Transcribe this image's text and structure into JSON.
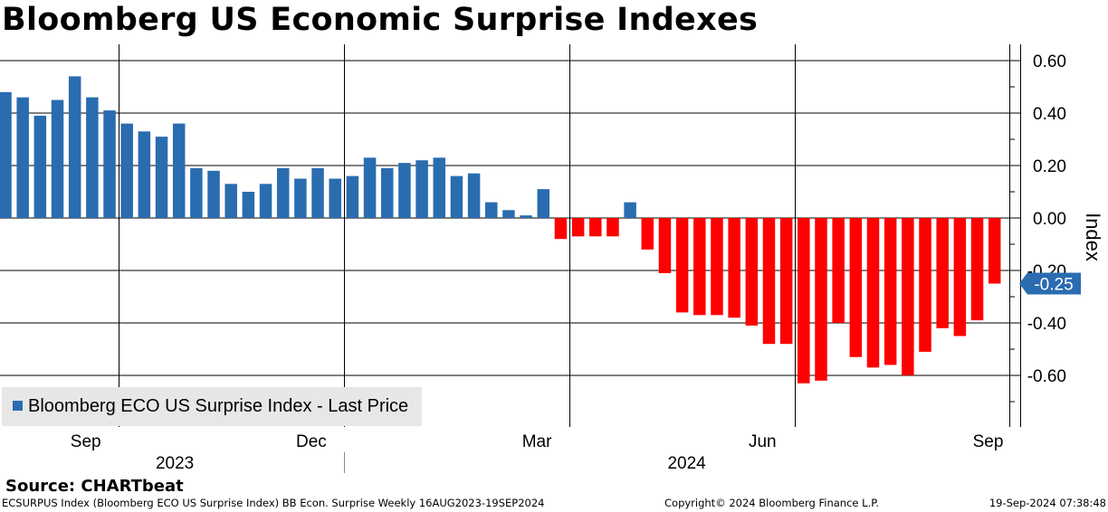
{
  "title": "Bloomberg US Economic Surprise Indexes",
  "chart_data": {
    "type": "bar",
    "title": "Bloomberg US Economic Surprise Indexes",
    "ylabel": "Index",
    "ylim": [
      -0.8,
      0.66
    ],
    "yticks": [
      "0.60",
      "0.40",
      "0.20",
      "0.00",
      "-0.20",
      "-0.40",
      "-0.60"
    ],
    "ytick_values": [
      0.6,
      0.4,
      0.2,
      0.0,
      -0.2,
      -0.4,
      -0.6
    ],
    "y_axis_side": "right",
    "grid": true,
    "xtick_labels": [
      {
        "label": "Sep",
        "index": 4
      },
      {
        "label": "Dec",
        "index": 17
      },
      {
        "label": "Mar",
        "index": 30
      },
      {
        "label": "Jun",
        "index": 43
      },
      {
        "label": "Sep",
        "index": 56
      }
    ],
    "x_gridline_indices": [
      6.5,
      19.5,
      32.5,
      45.5,
      58.5
    ],
    "year_labels": [
      {
        "label": "2023",
        "center": 9.5
      },
      {
        "label": "2024",
        "center": 39
      }
    ],
    "year_divider_index": 19.5,
    "series": [
      {
        "name": "Bloomberg ECO US Surprise Index - Last Price",
        "positive_color": "#2a6cb0",
        "negative_color": "#ff0000",
        "values": [
          0.48,
          0.46,
          0.39,
          0.45,
          0.54,
          0.46,
          0.41,
          0.36,
          0.33,
          0.31,
          0.36,
          0.19,
          0.18,
          0.13,
          0.1,
          0.13,
          0.19,
          0.15,
          0.19,
          0.15,
          0.16,
          0.23,
          0.19,
          0.21,
          0.22,
          0.23,
          0.16,
          0.17,
          0.06,
          0.03,
          0.01,
          0.11,
          -0.08,
          -0.07,
          -0.07,
          -0.07,
          0.06,
          -0.12,
          -0.21,
          -0.36,
          -0.37,
          -0.37,
          -0.38,
          -0.41,
          -0.48,
          -0.48,
          -0.63,
          -0.62,
          -0.4,
          -0.53,
          -0.57,
          -0.56,
          -0.6,
          -0.51,
          -0.42,
          -0.45,
          -0.39,
          -0.25
        ]
      }
    ],
    "last_value": {
      "label": "-0.25",
      "value": -0.25,
      "color": "#2a6cb0"
    }
  },
  "legend": {
    "label": "Bloomberg ECO US Surprise Index - Last Price",
    "color": "#2a6cb0"
  },
  "source": "Source: CHARTbeat",
  "footer": {
    "left": "ECSURPUS Index (Bloomberg ECO US Surprise Index) BB Econ. Surprise  Weekly 16AUG2023-19SEP2024",
    "center": "Copyright© 2024 Bloomberg Finance L.P.",
    "right": "19-Sep-2024 07:38:48"
  }
}
